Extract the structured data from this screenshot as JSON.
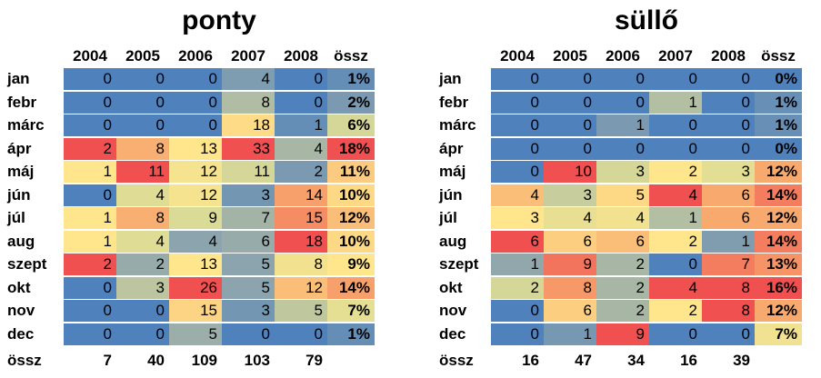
{
  "chart_data": [
    {
      "type": "heatmap",
      "title": "ponty",
      "columns": [
        "2004",
        "2005",
        "2006",
        "2007",
        "2008",
        "össz"
      ],
      "rows": [
        "jan",
        "febr",
        "márc",
        "ápr",
        "máj",
        "jún",
        "júl",
        "aug",
        "szept",
        "okt",
        "nov",
        "dec"
      ],
      "values": [
        [
          0,
          0,
          0,
          4,
          0
        ],
        [
          0,
          0,
          0,
          8,
          0
        ],
        [
          0,
          0,
          0,
          18,
          1
        ],
        [
          2,
          8,
          13,
          33,
          4
        ],
        [
          1,
          11,
          12,
          11,
          2
        ],
        [
          0,
          4,
          12,
          3,
          14
        ],
        [
          1,
          8,
          9,
          7,
          15
        ],
        [
          1,
          4,
          4,
          6,
          18
        ],
        [
          2,
          2,
          13,
          5,
          8
        ],
        [
          0,
          3,
          26,
          5,
          12
        ],
        [
          0,
          0,
          15,
          3,
          5
        ],
        [
          0,
          0,
          5,
          0,
          0
        ]
      ],
      "percent": [
        "1%",
        "2%",
        "6%",
        "18%",
        "11%",
        "10%",
        "12%",
        "10%",
        "9%",
        "14%",
        "7%",
        "1%"
      ],
      "total_label": "össz",
      "totals": [
        7,
        40,
        109,
        103,
        79
      ]
    },
    {
      "type": "heatmap",
      "title": "süllő",
      "columns": [
        "2004",
        "2005",
        "2006",
        "2007",
        "2008",
        "össz"
      ],
      "rows": [
        "jan",
        "febr",
        "márc",
        "ápr",
        "máj",
        "jún",
        "júl",
        "aug",
        "szept",
        "okt",
        "nov",
        "dec"
      ],
      "values": [
        [
          0,
          0,
          0,
          0,
          0
        ],
        [
          0,
          0,
          0,
          1,
          0
        ],
        [
          0,
          0,
          1,
          0,
          0
        ],
        [
          0,
          0,
          0,
          0,
          0
        ],
        [
          0,
          10,
          3,
          2,
          3
        ],
        [
          4,
          3,
          5,
          4,
          6
        ],
        [
          3,
          4,
          4,
          1,
          6
        ],
        [
          6,
          6,
          6,
          2,
          1
        ],
        [
          1,
          9,
          2,
          0,
          7
        ],
        [
          2,
          8,
          2,
          4,
          8
        ],
        [
          0,
          6,
          2,
          2,
          8
        ],
        [
          0,
          1,
          9,
          0,
          0
        ]
      ],
      "percent": [
        "0%",
        "1%",
        "1%",
        "0%",
        "12%",
        "14%",
        "12%",
        "14%",
        "13%",
        "16%",
        "12%",
        "7%"
      ],
      "total_label": "össz",
      "totals": [
        16,
        47,
        34,
        16,
        39
      ]
    }
  ]
}
